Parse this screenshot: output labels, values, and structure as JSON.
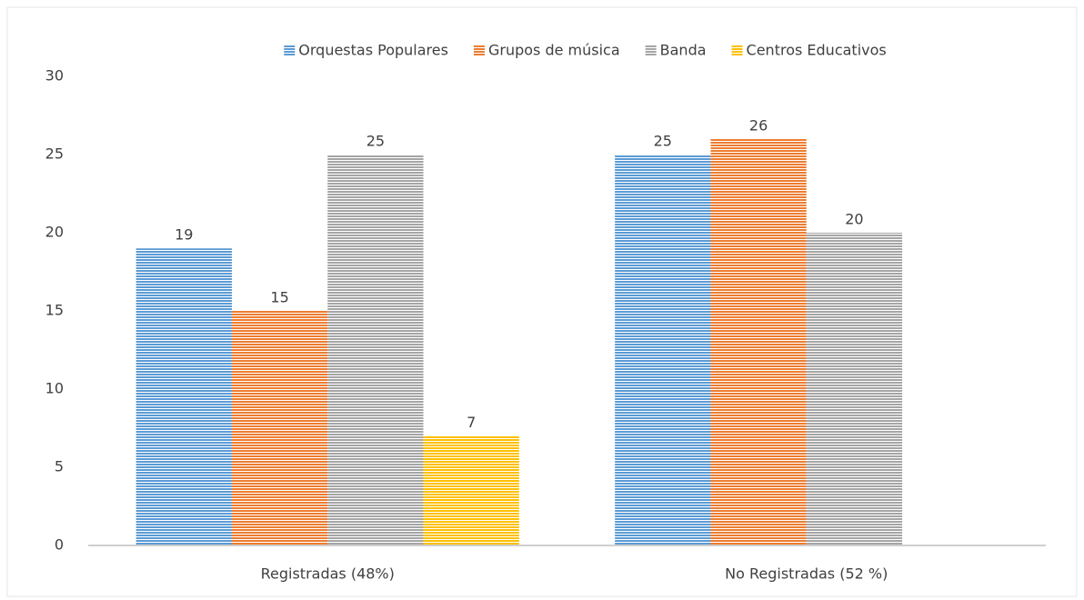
{
  "chart_data": {
    "type": "bar",
    "categories": [
      "Registradas (48%)",
      "No Registradas (52 %)"
    ],
    "series": [
      {
        "name": "Orquestas Populares",
        "color": "#5b9bd5",
        "values": [
          19,
          25
        ]
      },
      {
        "name": "Grupos de música",
        "color": "#ed7d31",
        "values": [
          15,
          26
        ]
      },
      {
        "name": "Banda",
        "color": "#a5a5a5",
        "values": [
          25,
          20
        ]
      },
      {
        "name": "Centros Educativos",
        "color": "#ffc000",
        "values": [
          7,
          null
        ]
      }
    ],
    "ylim": [
      0,
      30
    ],
    "yticks": [
      0,
      5,
      10,
      15,
      20,
      25,
      30
    ],
    "grid": false,
    "legend": "top"
  }
}
